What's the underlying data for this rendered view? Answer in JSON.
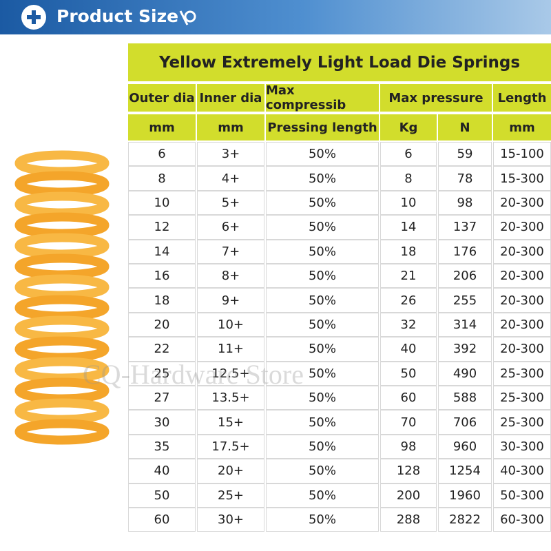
{
  "header": {
    "title": "Product Size"
  },
  "watermark": "CQ-Hardware Store",
  "table": {
    "title": "Yellow Extremely Light Load Die Springs",
    "header_top": [
      "Outer dia",
      "Inner dia",
      "Max compressib",
      "Max pressure",
      "Length"
    ],
    "header_units": [
      "mm",
      "mm",
      "Pressing length",
      "Kg",
      "N",
      "mm"
    ],
    "rows": [
      [
        "6",
        "3+",
        "50%",
        "6",
        "59",
        "15-100"
      ],
      [
        "8",
        "4+",
        "50%",
        "8",
        "78",
        "15-300"
      ],
      [
        "10",
        "5+",
        "50%",
        "10",
        "98",
        "20-300"
      ],
      [
        "12",
        "6+",
        "50%",
        "14",
        "137",
        "20-300"
      ],
      [
        "14",
        "7+",
        "50%",
        "18",
        "176",
        "20-300"
      ],
      [
        "16",
        "8+",
        "50%",
        "21",
        "206",
        "20-300"
      ],
      [
        "18",
        "9+",
        "50%",
        "26",
        "255",
        "20-300"
      ],
      [
        "20",
        "10+",
        "50%",
        "32",
        "314",
        "20-300"
      ],
      [
        "22",
        "11+",
        "50%",
        "40",
        "392",
        "20-300"
      ],
      [
        "25",
        "12.5+",
        "50%",
        "50",
        "490",
        "25-300"
      ],
      [
        "27",
        "13.5+",
        "50%",
        "60",
        "588",
        "25-300"
      ],
      [
        "30",
        "15+",
        "50%",
        "70",
        "706",
        "25-300"
      ],
      [
        "35",
        "17.5+",
        "50%",
        "98",
        "960",
        "30-300"
      ],
      [
        "40",
        "20+",
        "50%",
        "128",
        "1254",
        "40-300"
      ],
      [
        "50",
        "25+",
        "50%",
        "200",
        "1960",
        "50-300"
      ],
      [
        "60",
        "30+",
        "50%",
        "288",
        "2822",
        "60-300"
      ]
    ]
  }
}
